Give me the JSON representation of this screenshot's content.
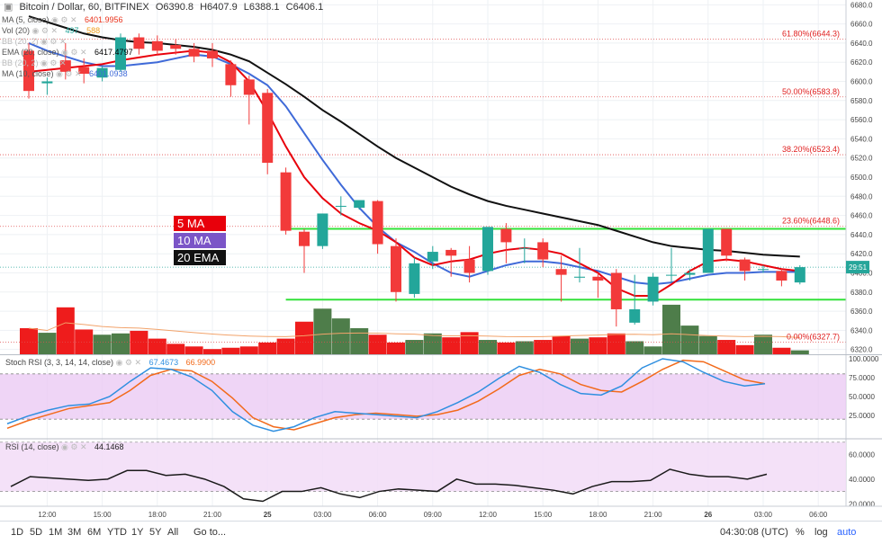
{
  "header": {
    "symbol_title": "Bitcoin / Dollar, 60, BITFINEX",
    "open_label": "O",
    "open": "6390.8",
    "high_label": "H",
    "high": "6407.9",
    "low_label": "L",
    "low": "6388.1",
    "close_label": "C",
    "close": "6406.1"
  },
  "indicators": [
    {
      "label": "MA (5, close)",
      "value": "6401.9956",
      "color": "#e8321c"
    },
    {
      "label": "Vol (20)",
      "value": "497",
      "value2": "588",
      "color": "#26a69a"
    },
    {
      "label": "BB (20, 2)",
      "value": "",
      "color": "#9aa0a6"
    },
    {
      "label": "EMA (20, close)",
      "value": "6417.4797",
      "color": "#000000"
    },
    {
      "label": "BB (20, 2)",
      "value": "",
      "color": "#9aa0a6"
    },
    {
      "label": "MA (10, close)",
      "value": "6401.0938",
      "color": "#3f6ad8"
    }
  ],
  "legend": {
    "ma5": "5 MA",
    "ma10": "10 MA",
    "ema20": "20 EMA",
    "ma5_color": "#e8000b",
    "ma10_color": "#7b55c7",
    "ema20_color": "#111111"
  },
  "last_price_tag": "29:51",
  "panels": {
    "stoch": {
      "title": "Stoch RSI (3, 3, 14, 14, close)",
      "k": "67.4673",
      "d": "66.9900"
    },
    "rsi": {
      "title": "RSI (14, close)",
      "value": "44.1468"
    }
  },
  "bottom_bar": {
    "timeframes": [
      "1D",
      "5D",
      "1M",
      "3M",
      "6M",
      "YTD",
      "1Y",
      "5Y",
      "All"
    ],
    "goto": "Go to...",
    "clock": "04:30:08 (UTC)",
    "pct": "%",
    "log": "log",
    "auto": "auto"
  },
  "chart_data": {
    "type": "candlestick",
    "title": "Bitcoin / Dollar, 60, BITFINEX",
    "ylim": [
      6315,
      6685
    ],
    "price_ticks": [
      "6680.0",
      "6660.0",
      "6640.0",
      "6620.0",
      "6600.0",
      "6580.0",
      "6560.0",
      "6540.0",
      "6520.0",
      "6500.0",
      "6480.0",
      "6460.0",
      "6440.0",
      "6420.0",
      "6400.0",
      "6380.0",
      "6360.0",
      "6340.0",
      "6320.0"
    ],
    "price_tick_values": [
      6680,
      6660,
      6640,
      6620,
      6600,
      6580,
      6560,
      6540,
      6520,
      6500,
      6480,
      6460,
      6440,
      6420,
      6400,
      6380,
      6360,
      6340,
      6320
    ],
    "time_labels": [
      "12:00",
      "15:00",
      "18:00",
      "21:00",
      "25",
      "03:00",
      "06:00",
      "09:00",
      "12:00",
      "15:00",
      "18:00",
      "21:00",
      "26",
      "03:00",
      "06:00"
    ],
    "time_label_bars": [
      1,
      4,
      7,
      10,
      13,
      16,
      19,
      22,
      25,
      28,
      31,
      34,
      37,
      40,
      43
    ],
    "candles": [
      {
        "o": 6632,
        "h": 6640,
        "l": 6582,
        "c": 6590
      },
      {
        "o": 6598,
        "h": 6604,
        "l": 6586,
        "c": 6600
      },
      {
        "o": 6622,
        "h": 6640,
        "l": 6602,
        "c": 6610
      },
      {
        "o": 6615,
        "h": 6624,
        "l": 6598,
        "c": 6608
      },
      {
        "o": 6604,
        "h": 6616,
        "l": 6600,
        "c": 6614
      },
      {
        "o": 6612,
        "h": 6650,
        "l": 6610,
        "c": 6646
      },
      {
        "o": 6646,
        "h": 6650,
        "l": 6628,
        "c": 6634
      },
      {
        "o": 6642,
        "h": 6648,
        "l": 6628,
        "c": 6632
      },
      {
        "o": 6638,
        "h": 6644,
        "l": 6628,
        "c": 6634
      },
      {
        "o": 6634,
        "h": 6640,
        "l": 6620,
        "c": 6626
      },
      {
        "o": 6632,
        "h": 6640,
        "l": 6615,
        "c": 6624
      },
      {
        "o": 6618,
        "h": 6622,
        "l": 6584,
        "c": 6596
      },
      {
        "o": 6602,
        "h": 6606,
        "l": 6555,
        "c": 6586
      },
      {
        "o": 6588,
        "h": 6592,
        "l": 6503,
        "c": 6515
      },
      {
        "o": 6505,
        "h": 6510,
        "l": 6440,
        "c": 6444
      },
      {
        "o": 6443,
        "h": 6446,
        "l": 6400,
        "c": 6428
      },
      {
        "o": 6428,
        "h": 6462,
        "l": 6425,
        "c": 6462
      },
      {
        "o": 6470,
        "h": 6480,
        "l": 6460,
        "c": 6470
      },
      {
        "o": 6468,
        "h": 6475,
        "l": 6466,
        "c": 6476
      },
      {
        "o": 6475,
        "h": 6476,
        "l": 6420,
        "c": 6430
      },
      {
        "o": 6428,
        "h": 6436,
        "l": 6370,
        "c": 6380
      },
      {
        "o": 6378,
        "h": 6416,
        "l": 6374,
        "c": 6410
      },
      {
        "o": 6412,
        "h": 6428,
        "l": 6404,
        "c": 6422
      },
      {
        "o": 6424,
        "h": 6426,
        "l": 6396,
        "c": 6418
      },
      {
        "o": 6414,
        "h": 6428,
        "l": 6390,
        "c": 6400
      },
      {
        "o": 6402,
        "h": 6448,
        "l": 6398,
        "c": 6448
      },
      {
        "o": 6446,
        "h": 6452,
        "l": 6410,
        "c": 6432
      },
      {
        "o": 6426,
        "h": 6436,
        "l": 6410,
        "c": 6426
      },
      {
        "o": 6432,
        "h": 6436,
        "l": 6406,
        "c": 6414
      },
      {
        "o": 6404,
        "h": 6418,
        "l": 6370,
        "c": 6398
      },
      {
        "o": 6395,
        "h": 6426,
        "l": 6390,
        "c": 6396
      },
      {
        "o": 6396,
        "h": 6400,
        "l": 6374,
        "c": 6392
      },
      {
        "o": 6400,
        "h": 6404,
        "l": 6344,
        "c": 6362
      },
      {
        "o": 6348,
        "h": 6398,
        "l": 6346,
        "c": 6362
      },
      {
        "o": 6370,
        "h": 6400,
        "l": 6366,
        "c": 6396
      },
      {
        "o": 6398,
        "h": 6426,
        "l": 6390,
        "c": 6398
      },
      {
        "o": 6398,
        "h": 6404,
        "l": 6392,
        "c": 6400
      },
      {
        "o": 6400,
        "h": 6446,
        "l": 6400,
        "c": 6446
      },
      {
        "o": 6446,
        "h": 6446,
        "l": 6412,
        "c": 6418
      },
      {
        "o": 6414,
        "h": 6416,
        "l": 6392,
        "c": 6402
      },
      {
        "o": 6404,
        "h": 6408,
        "l": 6400,
        "c": 6404
      },
      {
        "o": 6402,
        "h": 6404,
        "l": 6386,
        "c": 6392
      },
      {
        "o": 6390,
        "h": 6408,
        "l": 6388,
        "c": 6406
      }
    ],
    "volumes": [
      40,
      33,
      72,
      38,
      30,
      32,
      36,
      24,
      16,
      12,
      8,
      10,
      12,
      18,
      24,
      50,
      70,
      55,
      40,
      30,
      18,
      22,
      32,
      26,
      34,
      22,
      18,
      20,
      22,
      28,
      24,
      26,
      32,
      20,
      12,
      76,
      44,
      28,
      22,
      14,
      30,
      10,
      6
    ],
    "fib_levels": [
      {
        "label": "61.80%(6644.3)",
        "value": 6644.3
      },
      {
        "label": "50.00%(6583.8)",
        "value": 6583.8
      },
      {
        "label": "38.20%(6523.4)",
        "value": 6523.4
      },
      {
        "label": "23.60%(6448.6)",
        "value": 6448.6
      },
      {
        "label": "0.00%(6327.7)",
        "value": 6327.7
      }
    ],
    "support_lines": [
      {
        "from_bar": 14,
        "to_bar": 44,
        "value": 6446
      },
      {
        "from_bar": 14,
        "to_bar": 44,
        "value": 6372
      }
    ],
    "ema20": [
      6668,
      6662,
      6656,
      6650,
      6646,
      6643,
      6641,
      6640,
      6638,
      6636,
      6633,
      6628,
      6621,
      6609,
      6597,
      6584,
      6570,
      6558,
      6545,
      6532,
      6520,
      6510,
      6500,
      6490,
      6482,
      6475,
      6470,
      6466,
      6462,
      6458,
      6454,
      6450,
      6444,
      6438,
      6432,
      6428,
      6426,
      6424,
      6423,
      6421,
      6419,
      6418,
      6417
    ],
    "ma10": [
      6640,
      6632,
      6626,
      6620,
      6616,
      6616,
      6618,
      6620,
      6624,
      6628,
      6626,
      6618,
      6608,
      6596,
      6574,
      6546,
      6518,
      6492,
      6468,
      6448,
      6432,
      6422,
      6410,
      6400,
      6396,
      6402,
      6408,
      6412,
      6412,
      6410,
      6406,
      6402,
      6396,
      6390,
      6388,
      6390,
      6394,
      6398,
      6400,
      6400,
      6401,
      6401,
      6401
    ],
    "ma5": [
      6610,
      6612,
      6614,
      6616,
      6618,
      6622,
      6625,
      6628,
      6630,
      6632,
      6630,
      6620,
      6600,
      6568,
      6532,
      6500,
      6478,
      6462,
      6452,
      6444,
      6432,
      6416,
      6408,
      6412,
      6414,
      6420,
      6424,
      6426,
      6424,
      6420,
      6410,
      6400,
      6384,
      6376,
      6376,
      6388,
      6402,
      6412,
      6414,
      6412,
      6408,
      6404,
      6402
    ],
    "stoch": {
      "ylim": [
        0,
        100
      ],
      "ticks": [
        "100.0000",
        "75.0000",
        "50.0000",
        "25.0000"
      ],
      "tick_values": [
        100,
        75,
        50,
        25
      ],
      "k": [
        14,
        24,
        32,
        38,
        40,
        50,
        70,
        88,
        86,
        76,
        58,
        30,
        12,
        4,
        10,
        22,
        30,
        28,
        26,
        24,
        22,
        30,
        42,
        56,
        74,
        90,
        82,
        66,
        54,
        52,
        64,
        88,
        100,
        96,
        82,
        70,
        64,
        67
      ],
      "d": [
        8,
        18,
        26,
        34,
        38,
        42,
        58,
        78,
        86,
        84,
        70,
        48,
        22,
        10,
        6,
        14,
        22,
        26,
        28,
        26,
        24,
        26,
        32,
        44,
        60,
        78,
        86,
        80,
        66,
        58,
        56,
        70,
        86,
        98,
        96,
        84,
        72,
        67
      ]
    },
    "rsi": {
      "ylim": [
        18,
        72
      ],
      "ticks": [
        "60.0000",
        "40.0000",
        "20.0000"
      ],
      "tick_values": [
        60,
        40,
        20
      ],
      "values": [
        34,
        42,
        41,
        40,
        39,
        40,
        47,
        47,
        43,
        44,
        40,
        34,
        24,
        22,
        30,
        30,
        33,
        28,
        25,
        30,
        32,
        31,
        30,
        40,
        36,
        36,
        35,
        33,
        31,
        28,
        34,
        38,
        38,
        39,
        48,
        44,
        42,
        42,
        40,
        44
      ]
    }
  }
}
